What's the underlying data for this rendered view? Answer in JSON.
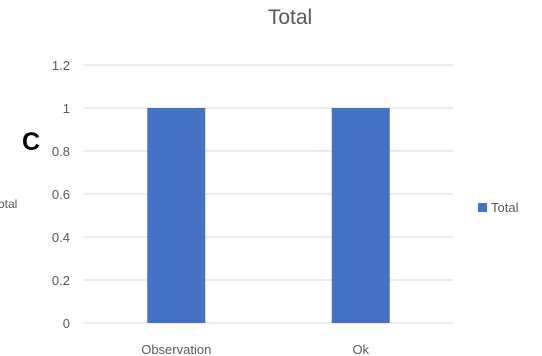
{
  "panel_label": "C",
  "colors": {
    "bar": "#4472C4",
    "grid": "#d9d9d9",
    "text": "#595959"
  },
  "chart_data": {
    "type": "bar",
    "title": "Total",
    "ylabel": "Total",
    "xlabel": "",
    "categories": [
      "Observation",
      "Ok"
    ],
    "series": [
      {
        "name": "Total",
        "values": [
          1,
          1
        ]
      }
    ],
    "ylim": [
      0,
      1.2
    ],
    "yticks": [
      "0",
      "0.2",
      "0.4",
      "0.6",
      "0.8",
      "1",
      "1.2"
    ],
    "grid": true,
    "legend_position": "right"
  }
}
